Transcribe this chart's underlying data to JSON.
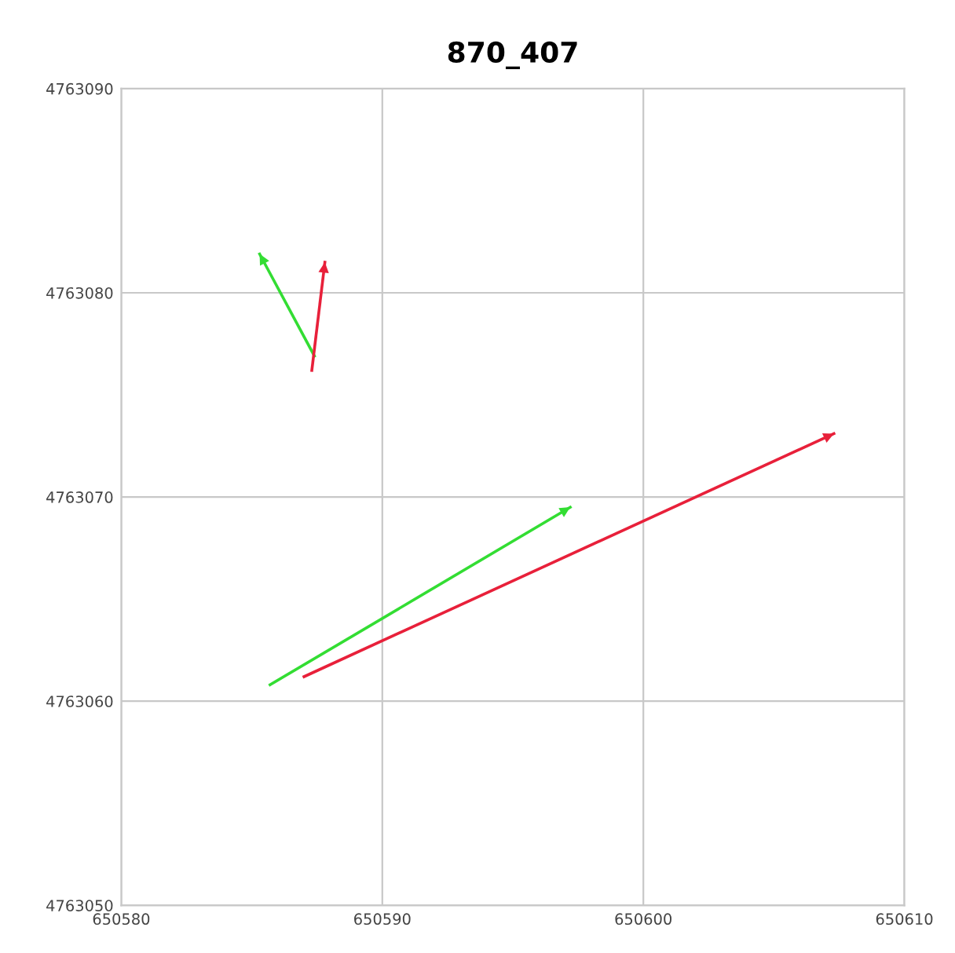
{
  "chart_data": {
    "type": "line",
    "title": "870_407",
    "xlim": [
      650580,
      650610
    ],
    "xticks": [
      650580,
      650590,
      650600,
      650610
    ],
    "ylim": [
      4763050,
      4763090
    ],
    "yticks": [
      4763050,
      4763060,
      4763070,
      4763080,
      4763090
    ],
    "grid": true,
    "marker": "none",
    "line_style": "solid",
    "series": [
      {
        "color": "#33dd33",
        "x": [
          650587.4,
          650585.3
        ],
        "values": [
          4763076.9,
          4763081.9
        ]
      },
      {
        "color": "#e8203a",
        "x": [
          650587.3,
          650587.8
        ],
        "values": [
          4763076.2,
          4763081.5
        ]
      },
      {
        "color": "#33dd33",
        "x": [
          650585.7,
          650597.2
        ],
        "values": [
          4763060.8,
          4763069.5
        ]
      },
      {
        "color": "#e8203a",
        "x": [
          650587.0,
          650607.3
        ],
        "values": [
          4763061.2,
          4763073.1
        ]
      }
    ]
  }
}
